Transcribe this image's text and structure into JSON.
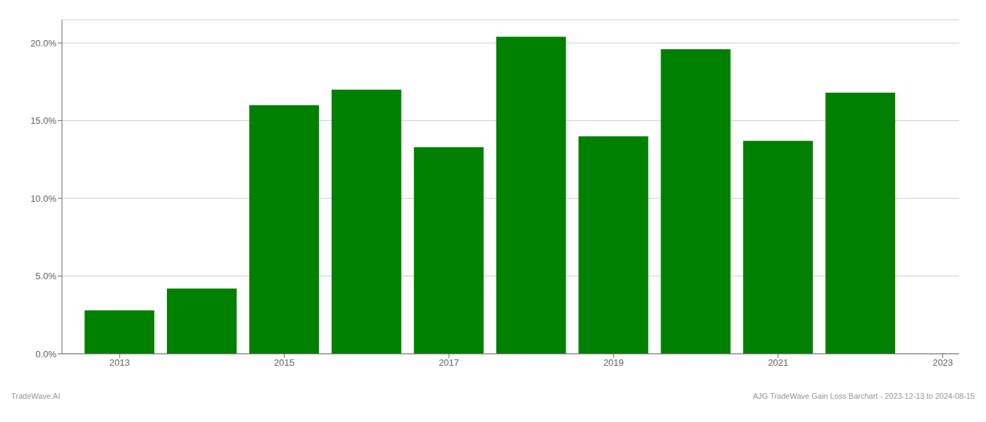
{
  "chart_data": {
    "type": "bar",
    "x": [
      2013,
      2014,
      2015,
      2016,
      2017,
      2018,
      2019,
      2020,
      2021,
      2022
    ],
    "values": [
      0.028,
      0.042,
      0.16,
      0.17,
      0.133,
      0.204,
      0.14,
      0.196,
      0.137,
      0.168
    ],
    "color": "#008000",
    "xlim": [
      2012.3,
      2023.2
    ],
    "xticks": [
      2013,
      2015,
      2017,
      2019,
      2021,
      2023
    ],
    "ylim": [
      0,
      0.215
    ],
    "yticks": [
      {
        "value": 0.0,
        "label": "0.0%"
      },
      {
        "value": 0.05,
        "label": "5.0%"
      },
      {
        "value": 0.1,
        "label": "10.0%"
      },
      {
        "value": 0.15,
        "label": "15.0%"
      },
      {
        "value": 0.2,
        "label": "20.0%"
      }
    ],
    "grid": true,
    "annotations": [
      "TradeWave.AI",
      "AJG TradeWave Gain Loss Barchart - 2023-12-13 to 2024-08-15"
    ]
  }
}
